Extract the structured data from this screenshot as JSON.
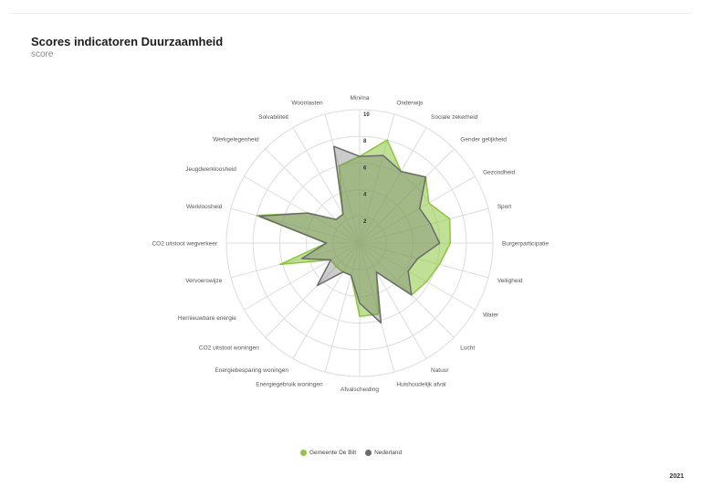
{
  "header": {
    "title": "Scores indicatoren Duurzaamheid",
    "subtitle": "score",
    "year": "2021"
  },
  "colors": {
    "series_1": "#8dc63f",
    "series_2": "#6b6b6b",
    "grid": "#dddddd"
  },
  "chart_data": {
    "type": "radar",
    "title": "Scores indicatoren Duurzaamheid",
    "subtitle": "score",
    "rlim": [
      0,
      10
    ],
    "ticks": [
      "2",
      "4",
      "6",
      "8",
      "10"
    ],
    "categories": [
      "Minima",
      "Onderwijs",
      "Sociale zekerheid",
      "Gender gelijkheid",
      "Gezondheid",
      "Sport",
      "Burgerparticipatie",
      "Veiligheid",
      "Water",
      "Lucht",
      "Natuur",
      "Huishoudelijk afval",
      "Afvalscheiding",
      "Energiegebruik woningen",
      "Energiebesparing woningen",
      "CO2 uitstoot woningen",
      "Hernieuwbare energie",
      "Vervoerswijze",
      "CO2 uitstoot wegverkeer",
      "Werkloosheid",
      "Jeugdwerkloosheid",
      "Werkgelegenheid",
      "Solvabiliteit",
      "Woonlasten"
    ],
    "series": [
      {
        "name": "Gemeente De Bilt",
        "values": [
          6.5,
          8.0,
          6.2,
          7.0,
          6.0,
          7.0,
          6.8,
          6.2,
          5.8,
          5.5,
          2.5,
          5.5,
          5.5,
          2.5,
          2.5,
          2.5,
          2.5,
          6.2,
          2.5,
          8.0,
          4.5,
          2.5,
          2.5,
          6.0
        ]
      },
      {
        "name": "Nederland",
        "values": [
          6.5,
          6.8,
          6.2,
          7.0,
          5.2,
          5.5,
          6.0,
          4.5,
          4.2,
          5.5,
          2.5,
          6.2,
          4.5,
          2.5,
          2.5,
          4.5,
          2.5,
          4.5,
          2.5,
          7.8,
          4.5,
          2.5,
          2.5,
          7.5
        ]
      }
    ],
    "grid": true,
    "legend_position": "bottom"
  }
}
